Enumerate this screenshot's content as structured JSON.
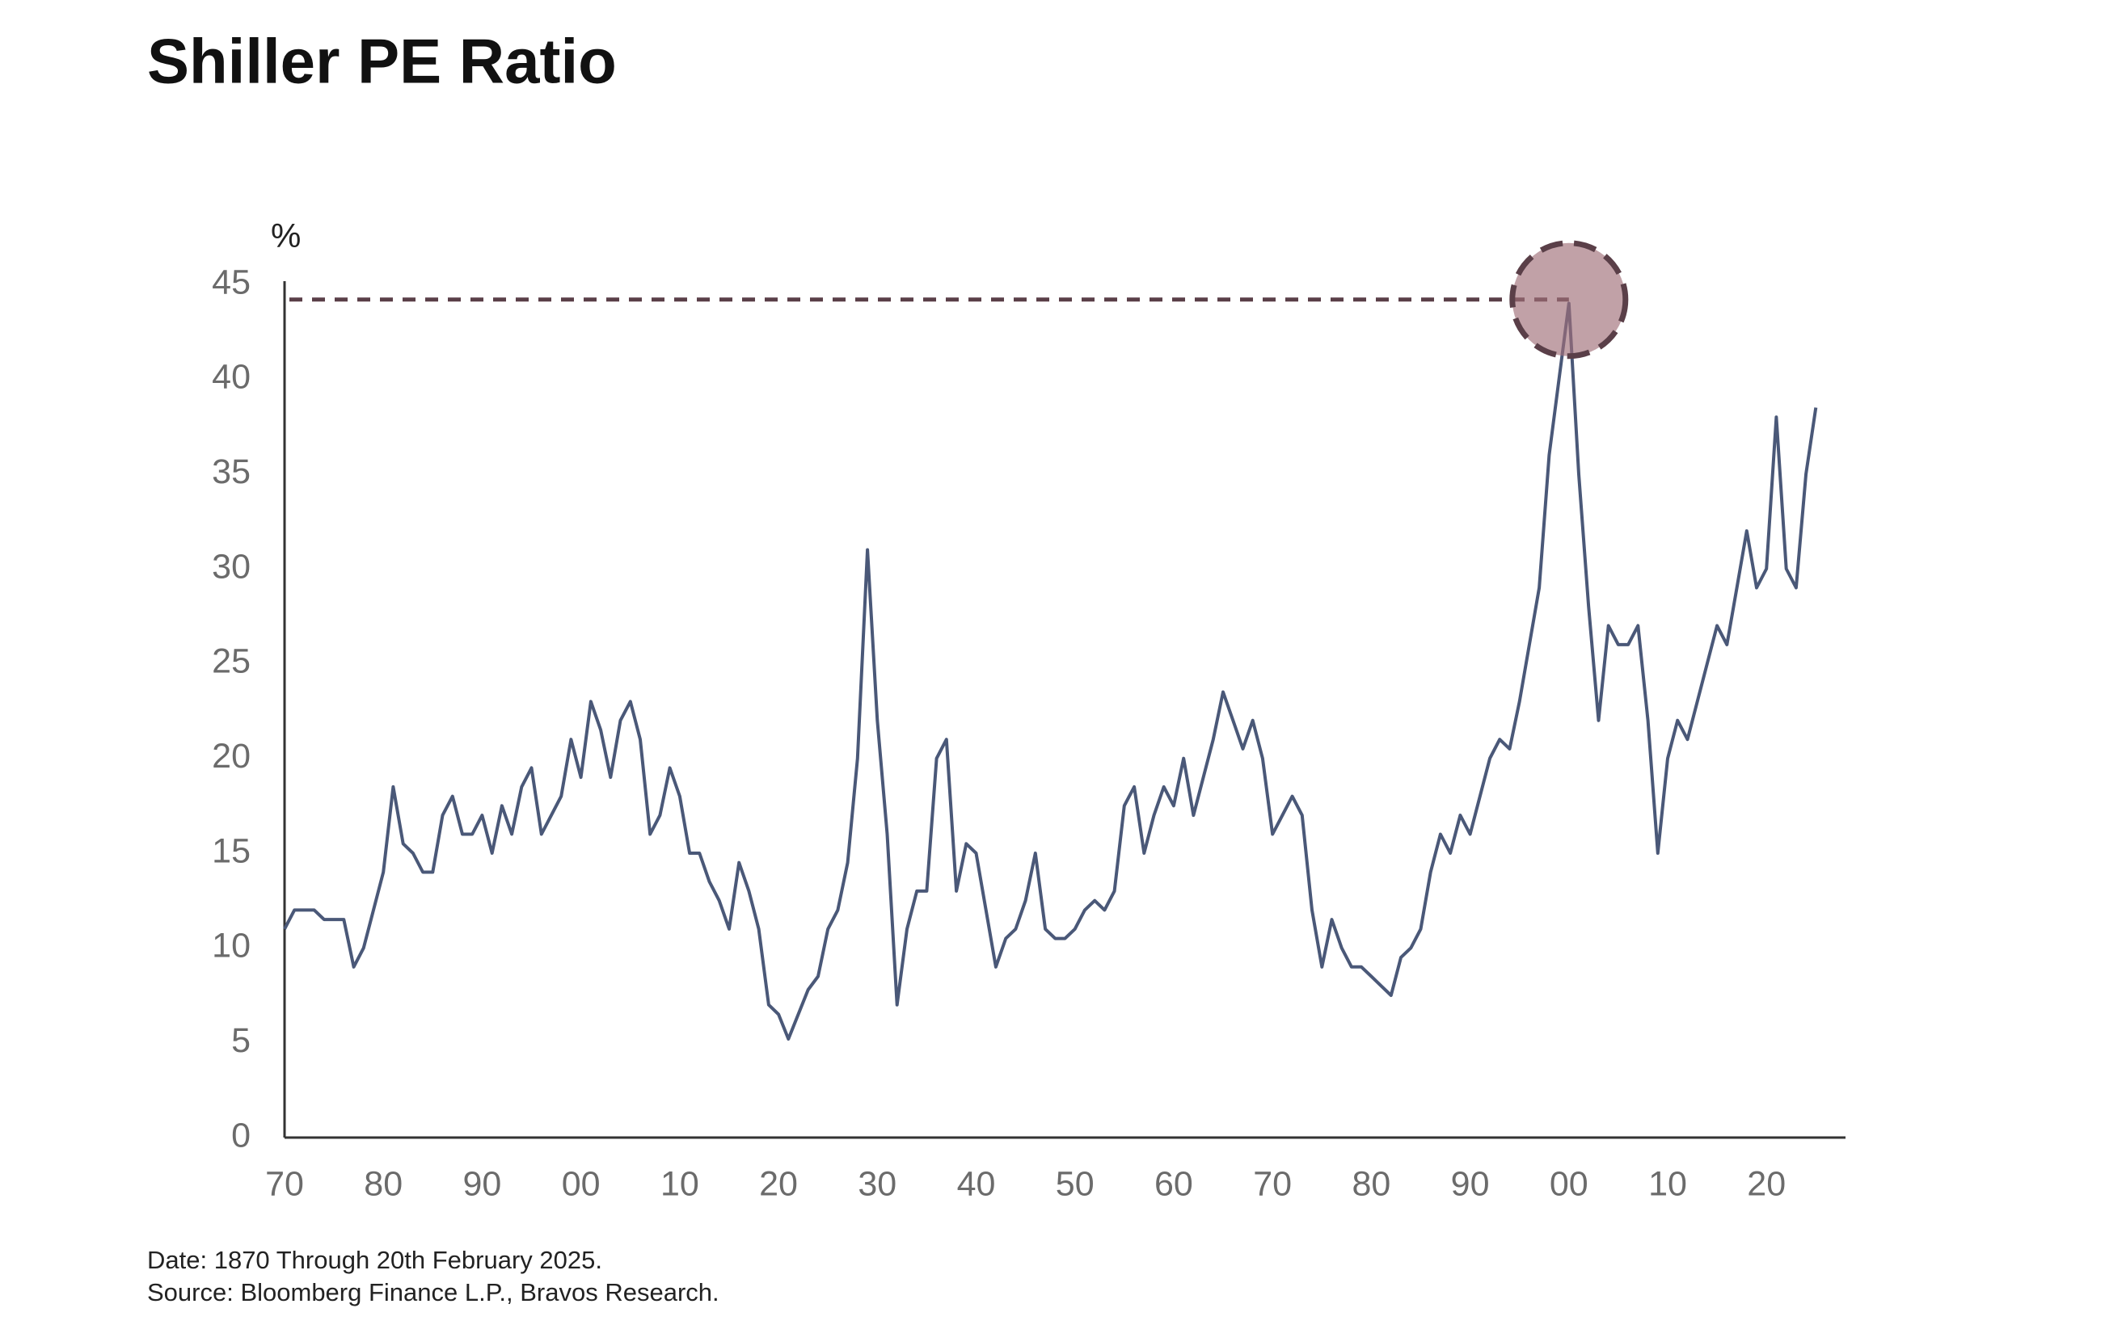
{
  "chart_data": {
    "type": "line",
    "title": "Shiller PE Ratio",
    "y_unit": "%",
    "notes": [
      "Date: 1870 Through 20th February 2025.",
      "Source: Bloomberg Finance L.P., Bravos Research."
    ],
    "color": "#4a5878",
    "x": [
      1870,
      1871,
      1872,
      1873,
      1874,
      1875,
      1876,
      1877,
      1878,
      1879,
      1880,
      1881,
      1882,
      1883,
      1884,
      1885,
      1886,
      1887,
      1888,
      1889,
      1890,
      1891,
      1892,
      1893,
      1894,
      1895,
      1896,
      1897,
      1898,
      1899,
      1900,
      1901,
      1902,
      1903,
      1904,
      1905,
      1906,
      1907,
      1908,
      1909,
      1910,
      1911,
      1912,
      1913,
      1914,
      1915,
      1916,
      1917,
      1918,
      1919,
      1920,
      1921,
      1922,
      1923,
      1924,
      1925,
      1926,
      1927,
      1928,
      1929,
      1930,
      1931,
      1932,
      1933,
      1934,
      1935,
      1936,
      1937,
      1938,
      1939,
      1940,
      1941,
      1942,
      1943,
      1944,
      1945,
      1946,
      1947,
      1948,
      1949,
      1950,
      1951,
      1952,
      1953,
      1954,
      1955,
      1956,
      1957,
      1958,
      1959,
      1960,
      1961,
      1962,
      1963,
      1964,
      1965,
      1966,
      1967,
      1968,
      1969,
      1970,
      1971,
      1972,
      1973,
      1974,
      1975,
      1976,
      1977,
      1978,
      1979,
      1980,
      1981,
      1982,
      1983,
      1984,
      1985,
      1986,
      1987,
      1988,
      1989,
      1990,
      1991,
      1992,
      1993,
      1994,
      1995,
      1996,
      1997,
      1998,
      1999,
      2000,
      2001,
      2002,
      2003,
      2004,
      2005,
      2006,
      2007,
      2008,
      2009,
      2010,
      2011,
      2012,
      2013,
      2014,
      2015,
      2016,
      2017,
      2018,
      2019,
      2020,
      2021,
      2022,
      2023,
      2024,
      2025
    ],
    "values": [
      11,
      12,
      12,
      12,
      11.5,
      11.5,
      11.5,
      9,
      10,
      12,
      14,
      18.5,
      15.5,
      15,
      14,
      14,
      17,
      18,
      16,
      16,
      17,
      15,
      17.5,
      16,
      18.5,
      19.5,
      16,
      17,
      18,
      21,
      19,
      23,
      21.5,
      19,
      22,
      23,
      21,
      16,
      17,
      19.5,
      18,
      15,
      15,
      13.5,
      12.5,
      11,
      14.5,
      13,
      11,
      7,
      6.5,
      5.2,
      6.5,
      7.8,
      8.5,
      11,
      12,
      14.5,
      20,
      31,
      22,
      16,
      7,
      11,
      13,
      13,
      20,
      21,
      13,
      15.5,
      15,
      12,
      9,
      10.5,
      11,
      12.5,
      15,
      11,
      10.5,
      10.5,
      11,
      12,
      12.5,
      12,
      13,
      17.5,
      18.5,
      15,
      17,
      18.5,
      17.5,
      20,
      17,
      19,
      21,
      23.5,
      22,
      20.5,
      22,
      20,
      16,
      17,
      18,
      17,
      12,
      9,
      11.5,
      10,
      9,
      9,
      8.5,
      8,
      7.5,
      9.5,
      10,
      11,
      14,
      16,
      15,
      17,
      16,
      18,
      20,
      21,
      20.5,
      23,
      26,
      29,
      36,
      40,
      44,
      35,
      28,
      22,
      27,
      26,
      26,
      27,
      22,
      15,
      20,
      22,
      21,
      23,
      25,
      27,
      26,
      29,
      32,
      29,
      30,
      38,
      30,
      29,
      35,
      38.5
    ],
    "highlight": {
      "x": 2000,
      "y": 44.2
    },
    "xlim": [
      1870,
      2028
    ],
    "xticks": [
      {
        "value": 1870,
        "label": "70"
      },
      {
        "value": 1880,
        "label": "80"
      },
      {
        "value": 1890,
        "label": "90"
      },
      {
        "value": 1900,
        "label": "00"
      },
      {
        "value": 1910,
        "label": "10"
      },
      {
        "value": 1920,
        "label": "20"
      },
      {
        "value": 1930,
        "label": "30"
      },
      {
        "value": 1940,
        "label": "40"
      },
      {
        "value": 1950,
        "label": "50"
      },
      {
        "value": 1960,
        "label": "60"
      },
      {
        "value": 1970,
        "label": "70"
      },
      {
        "value": 1980,
        "label": "80"
      },
      {
        "value": 1990,
        "label": "90"
      },
      {
        "value": 2000,
        "label": "00"
      },
      {
        "value": 2010,
        "label": "10"
      },
      {
        "value": 2020,
        "label": "20"
      }
    ],
    "ylim": [
      0,
      45
    ],
    "yticks": [
      0,
      5,
      10,
      15,
      20,
      25,
      30,
      35,
      40,
      45
    ],
    "grid": false
  }
}
